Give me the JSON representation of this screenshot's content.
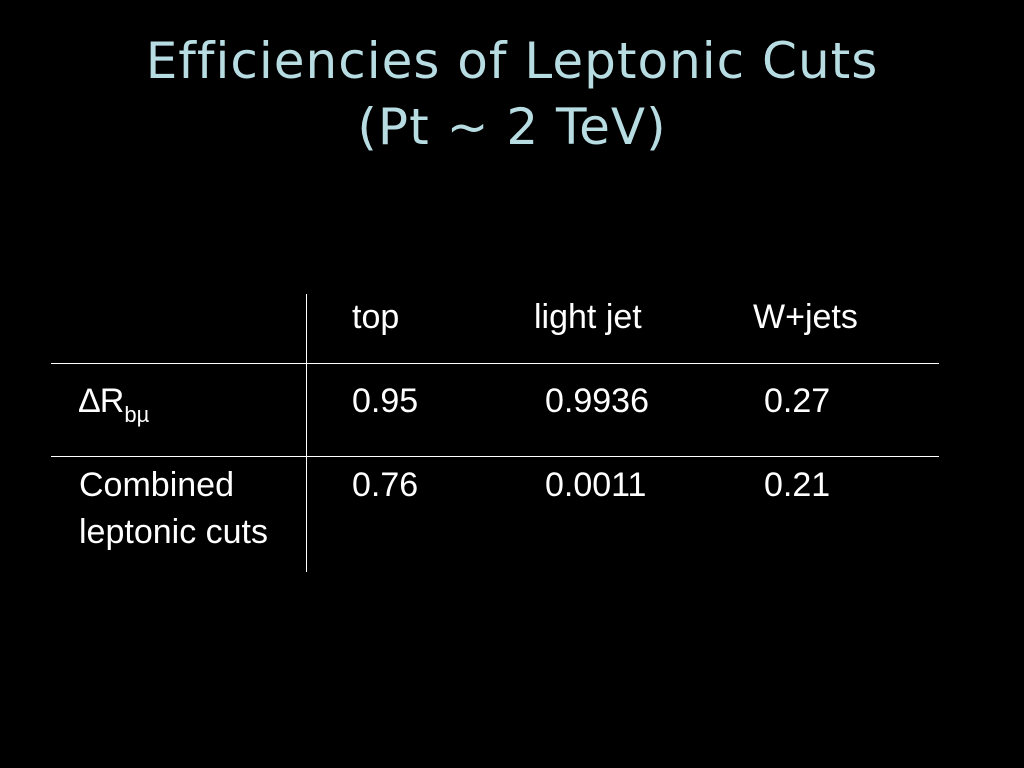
{
  "slide": {
    "title_line1": "Efficiencies of Leptonic Cuts",
    "title_line2": "(Pt ~ 2 TeV)"
  },
  "table": {
    "columns": [
      "top",
      "light jet",
      "W+jets"
    ],
    "rows": [
      {
        "label_main": "∆R",
        "label_sub": "bµ",
        "values": [
          "0.95",
          "0.9936",
          "0.27"
        ]
      },
      {
        "label_line1": "Combined",
        "label_line2": "leptonic cuts",
        "values": [
          "0.76",
          "0.0011",
          "0.21"
        ]
      }
    ]
  }
}
